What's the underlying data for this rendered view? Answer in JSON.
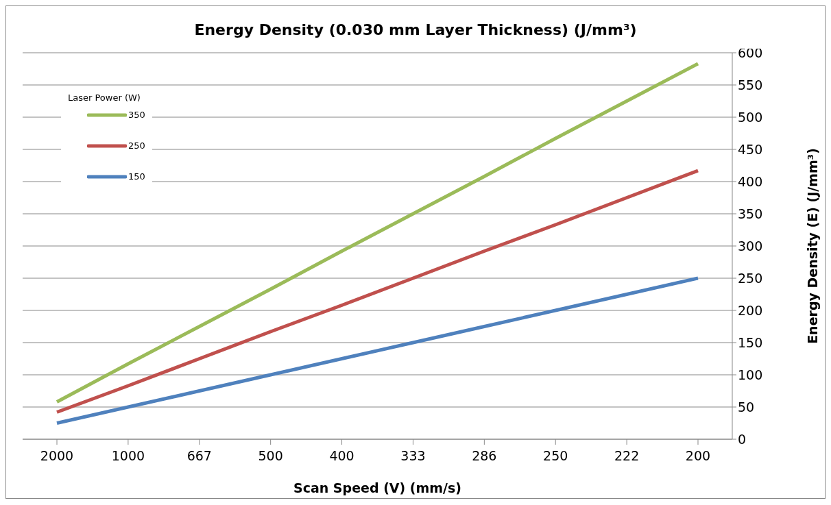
{
  "chart_data": {
    "type": "line",
    "title": "Energy Density (0.030 mm Layer Thickness) (J/mm³)",
    "xlabel": "Scan Speed  (V) (mm/s)",
    "ylabel": "Energy Density (E) (J/mm³)",
    "legend_title": "Laser Power (W)",
    "categories": [
      "2000",
      "1000",
      "667",
      "500",
      "400",
      "333",
      "286",
      "250",
      "222",
      "200"
    ],
    "series": [
      {
        "name": "350",
        "color": "#9bbb59",
        "values": [
          58,
          117,
          175,
          233,
          292,
          350,
          408,
          467,
          525,
          583
        ]
      },
      {
        "name": "250",
        "color": "#c0504d",
        "values": [
          42,
          83,
          125,
          167,
          208,
          250,
          292,
          333,
          375,
          417
        ]
      },
      {
        "name": "150",
        "color": "#4f81bd",
        "values": [
          25,
          50,
          75,
          100,
          125,
          150,
          175,
          200,
          225,
          250
        ]
      }
    ],
    "ylim": [
      0,
      600
    ],
    "yticks": [
      0,
      50,
      100,
      150,
      200,
      250,
      300,
      350,
      400,
      450,
      500,
      550,
      600
    ],
    "grid": "y",
    "legend": "top left",
    "marker": "none",
    "line_style": "solid"
  }
}
